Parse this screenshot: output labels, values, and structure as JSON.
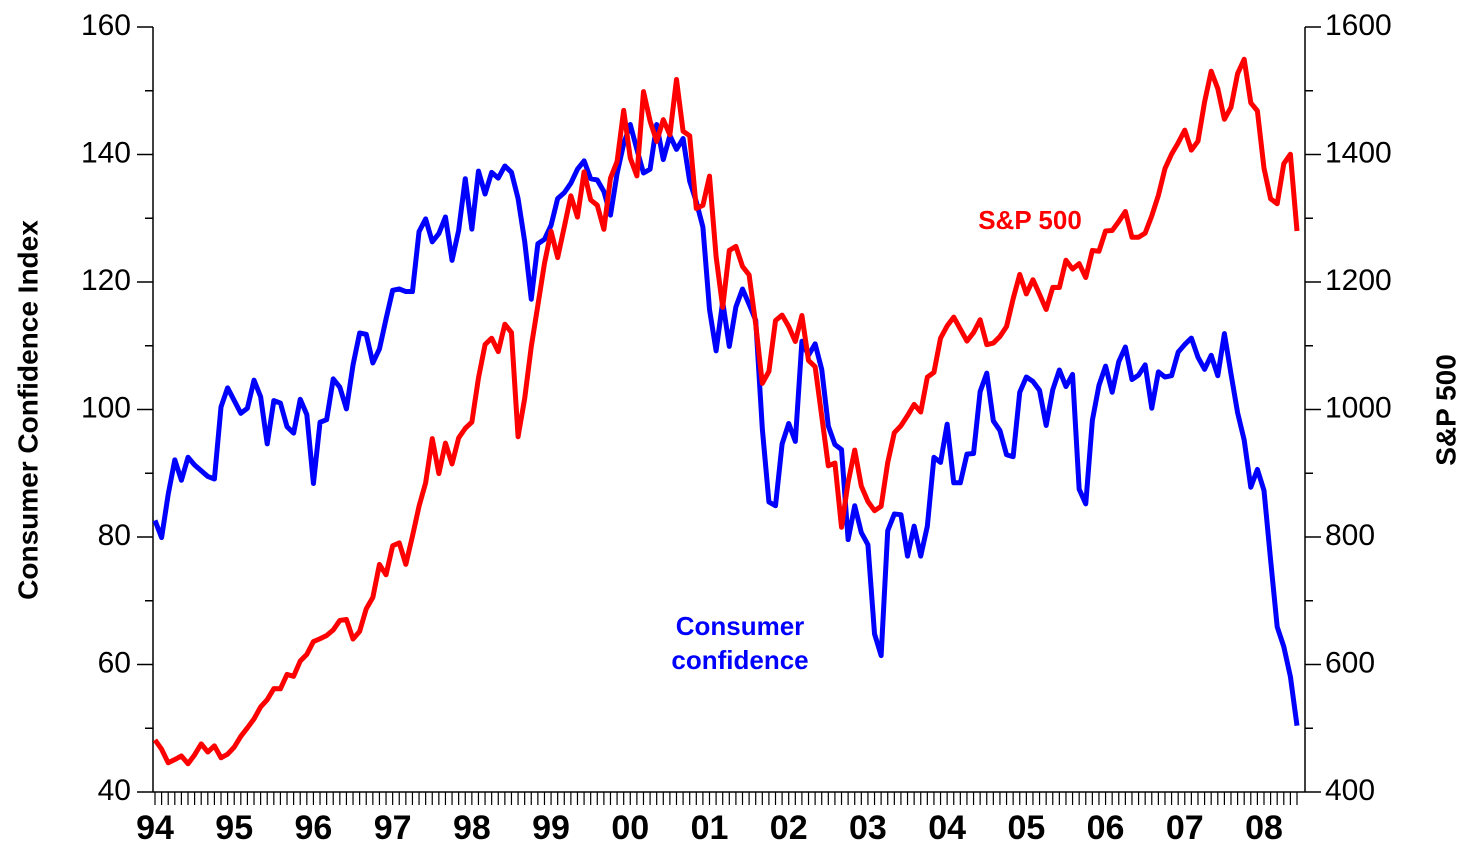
{
  "chart_data": {
    "type": "line",
    "ylabel": "Consumer Confidence Index",
    "y2label": "S&P 500",
    "categories": [
      "94",
      null,
      null,
      null,
      null,
      null,
      null,
      null,
      null,
      null,
      null,
      null,
      "95",
      null,
      null,
      null,
      null,
      null,
      null,
      null,
      null,
      null,
      null,
      null,
      "96",
      null,
      null,
      null,
      null,
      null,
      null,
      null,
      null,
      null,
      null,
      null,
      "97",
      null,
      null,
      null,
      null,
      null,
      null,
      null,
      null,
      null,
      null,
      null,
      "98",
      null,
      null,
      null,
      null,
      null,
      null,
      null,
      null,
      null,
      null,
      null,
      "99",
      null,
      null,
      null,
      null,
      null,
      null,
      null,
      null,
      null,
      null,
      null,
      "00",
      null,
      null,
      null,
      null,
      null,
      null,
      null,
      null,
      null,
      null,
      null,
      "01",
      null,
      null,
      null,
      null,
      null,
      null,
      null,
      null,
      null,
      null,
      null,
      "02",
      null,
      null,
      null,
      null,
      null,
      null,
      null,
      null,
      null,
      null,
      null,
      "03",
      null,
      null,
      null,
      null,
      null,
      null,
      null,
      null,
      null,
      null,
      null,
      "04",
      null,
      null,
      null,
      null,
      null,
      null,
      null,
      null,
      null,
      null,
      null,
      "05",
      null,
      null,
      null,
      null,
      null,
      null,
      null,
      null,
      null,
      null,
      null,
      "06",
      null,
      null,
      null,
      null,
      null,
      null,
      null,
      null,
      null,
      null,
      null,
      "07",
      null,
      null,
      null,
      null,
      null,
      null,
      null,
      null,
      null,
      null,
      null,
      "08",
      null,
      null,
      null,
      null,
      null
    ],
    "series": [
      {
        "color": "#0000ff",
        "axis": "y",
        "values": [
          82.6,
          79.9,
          86.7,
          92.1,
          88.9,
          92.5,
          91.3,
          90.4,
          89.5,
          89.1,
          100.4,
          103.4,
          101.4,
          99.4,
          100.2,
          104.6,
          102.0,
          94.6,
          101.4,
          101.0,
          97.3,
          96.3,
          101.6,
          99.2,
          88.4,
          98.0,
          98.4,
          104.8,
          103.5,
          100.1,
          107.0,
          112.0,
          111.8,
          107.3,
          109.5,
          114.2,
          118.7,
          118.9,
          118.5,
          118.5,
          127.9,
          129.9,
          126.3,
          127.6,
          130.2,
          123.4,
          128.1,
          136.2,
          128.3,
          137.4,
          133.8,
          137.2,
          136.3,
          138.2,
          137.2,
          133.1,
          126.4,
          117.3,
          126.0,
          126.7,
          128.9,
          133.1,
          134.0,
          135.5,
          137.7,
          139.0,
          136.2,
          136.0,
          134.2,
          130.5,
          137.0,
          141.7,
          144.7,
          140.8,
          137.1,
          137.7,
          144.7,
          139.2,
          143.0,
          140.8,
          142.5,
          135.8,
          132.6,
          128.6,
          115.7,
          109.2,
          116.9,
          109.9,
          116.1,
          118.9,
          116.5,
          114.0,
          97.0,
          85.5,
          84.9,
          94.6,
          97.8,
          95.0,
          110.7,
          108.5,
          110.3,
          106.3,
          97.4,
          94.5,
          93.7,
          79.6,
          84.9,
          80.7,
          78.8,
          64.8,
          61.4,
          81.0,
          83.6,
          83.5,
          77.0,
          81.7,
          77.0,
          81.7,
          92.5,
          91.7,
          97.7,
          88.5,
          88.5,
          93.0,
          93.1,
          102.8,
          105.7,
          98.2,
          96.7,
          92.9,
          92.6,
          102.7,
          105.1,
          104.4,
          103.0,
          97.5,
          103.1,
          106.2,
          103.6,
          105.5,
          87.5,
          85.2,
          98.3,
          103.8,
          106.8,
          102.7,
          107.5,
          109.8,
          104.7,
          105.4,
          107.0,
          100.2,
          105.9,
          105.1,
          105.3,
          109.0,
          110.2,
          111.2,
          108.2,
          106.3,
          108.5,
          105.3,
          111.9,
          105.6,
          99.5,
          95.2,
          87.8,
          90.6,
          87.3,
          76.4,
          65.9,
          62.8,
          58.1,
          50.4
        ]
      },
      {
        "color": "#ff0000",
        "axis": "y2",
        "values": [
          481.6,
          467.1,
          445.8,
          450.9,
          456.5,
          444.3,
          458.3,
          475.5,
          462.7,
          472.4,
          453.7,
          459.3,
          470.4,
          487.4,
          500.7,
          514.7,
          533.4,
          544.8,
          562.1,
          561.9,
          584.4,
          581.5,
          605.4,
          615.9,
          636.0,
          640.4,
          645.5,
          654.2,
          669.1,
          670.6,
          639.9,
          652.0,
          687.3,
          705.3,
          757.0,
          740.7,
          786.2,
          790.8,
          757.1,
          801.3,
          848.3,
          885.1,
          954.3,
          899.5,
          947.3,
          914.6,
          955.4,
          970.4,
          980.3,
          1049.3,
          1101.8,
          1111.8,
          1090.8,
          1133.8,
          1120.7,
          957.3,
          1017.0,
          1098.7,
          1163.6,
          1229.2,
          1279.6,
          1238.3,
          1286.4,
          1335.2,
          1301.8,
          1372.7,
          1328.7,
          1320.4,
          1282.7,
          1362.9,
          1388.9,
          1469.3,
          1394.5,
          1366.4,
          1498.6,
          1452.4,
          1420.6,
          1454.6,
          1430.8,
          1517.7,
          1436.5,
          1429.4,
          1315.2,
          1320.3,
          1366.0,
          1239.9,
          1160.3,
          1249.5,
          1255.8,
          1224.4,
          1211.2,
          1133.6,
          1040.9,
          1059.8,
          1139.5,
          1148.1,
          1130.2,
          1106.7,
          1147.4,
          1076.9,
          1067.1,
          989.8,
          911.6,
          916.1,
          815.3,
          885.8,
          936.3,
          879.8,
          855.7,
          841.2,
          848.2,
          916.9,
          963.6,
          974.5,
          990.3,
          1008.0,
          996.0,
          1050.7,
          1058.2,
          1111.9,
          1131.1,
          1144.9,
          1126.2,
          1107.3,
          1120.7,
          1140.8,
          1101.7,
          1104.2,
          1114.6,
          1130.2,
          1173.8,
          1211.9,
          1181.3,
          1203.6,
          1180.6,
          1156.9,
          1191.5,
          1191.3,
          1234.2,
          1220.3,
          1228.8,
          1207.0,
          1249.5,
          1248.3,
          1280.1,
          1280.7,
          1294.9,
          1310.6,
          1270.1,
          1270.2,
          1276.7,
          1303.8,
          1335.9,
          1377.9,
          1400.6,
          1418.3,
          1438.2,
          1406.8,
          1420.9,
          1482.4,
          1530.6,
          1503.4,
          1455.3,
          1474.0,
          1526.8,
          1549.4,
          1481.1,
          1468.4,
          1378.6,
          1330.6,
          1322.7,
          1385.6,
          1400.4,
          1280.0
        ]
      }
    ],
    "annotations": [
      {
        "text": "S&P 500",
        "color": "#ff0000"
      },
      {
        "lines": [
          "Consumer",
          "confidence"
        ],
        "color": "#0000ff"
      }
    ],
    "ylim": [
      40,
      160
    ],
    "yticks": [
      40,
      60,
      80,
      100,
      120,
      140,
      160
    ],
    "yminorticks": [
      50,
      70,
      90,
      110,
      130,
      150
    ],
    "y2lim": [
      400,
      1600
    ],
    "y2ticks": [
      400,
      600,
      800,
      1000,
      1200,
      1400,
      1600
    ],
    "y2minorticks": [
      500,
      700,
      900,
      1100,
      1300,
      1500
    ]
  }
}
